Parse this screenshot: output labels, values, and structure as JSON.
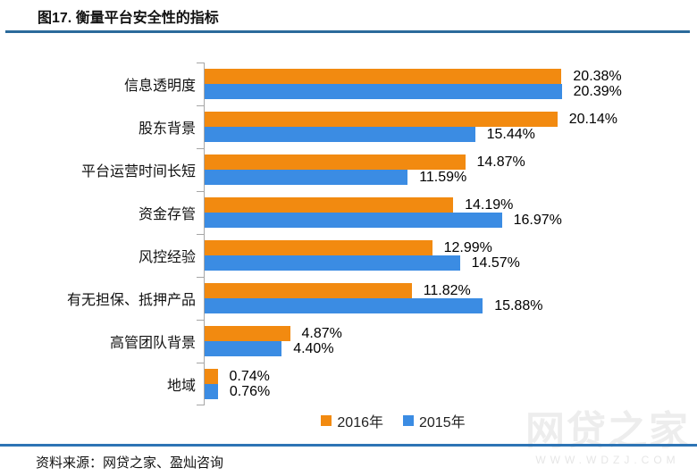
{
  "title": "图17. 衡量平台安全性的指标",
  "source": "资料来源：网贷之家、盈灿咨询",
  "watermark": {
    "name": "网贷之家",
    "url_text": "WWW.WDZJ.COM"
  },
  "colors": {
    "series_2016": "#F28A10",
    "series_2015": "#3B8CE3",
    "top_rule": "#2B6A9B",
    "bottom_rule": "#2D74B5",
    "axis": "#A6A6A6"
  },
  "chart_data": {
    "type": "bar",
    "orientation": "horizontal",
    "title": "图17. 衡量平台安全性的指标",
    "categories": [
      "信息透明度",
      "股东背景",
      "平台运营时间长短",
      "资金存管",
      "风控经验",
      "有无担保、抵押产品",
      "高管团队背景",
      "地域"
    ],
    "series": [
      {
        "key": "2016",
        "name": "2016年",
        "color": "#F28A10",
        "values": [
          20.38,
          20.14,
          14.87,
          14.19,
          12.99,
          11.82,
          4.87,
          0.74
        ]
      },
      {
        "key": "2015",
        "name": "2015年",
        "color": "#3B8CE3",
        "values": [
          20.39,
          15.44,
          11.59,
          16.97,
          14.57,
          15.88,
          4.4,
          0.76
        ]
      }
    ],
    "value_format": "percent_2dp",
    "value_labels": true,
    "xlim": [
      0,
      21
    ],
    "grid": false,
    "legend_position": "bottom-center"
  }
}
